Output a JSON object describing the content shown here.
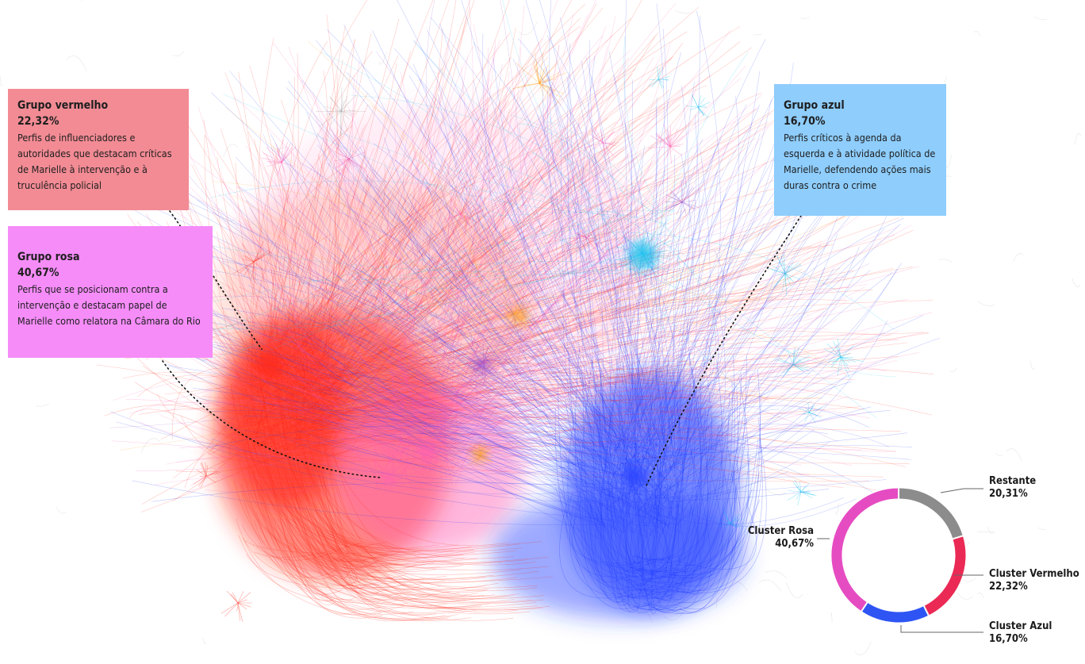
{
  "groups": {
    "red": {
      "title": "Grupo vermelho",
      "percent": "22,32%",
      "description": "Perfis de influenciadores e autoridades que destacam críticas de Marielle à intervenção e à truculência policial",
      "color": "#f28b94"
    },
    "pink": {
      "title": "Grupo rosa",
      "percent": "40,67%",
      "description": "Perfis que se posicionam contra a intervenção e destacam papel de Marielle como relatora na Câmara do Rio",
      "color": "#f58cf8"
    },
    "blue": {
      "title": "Grupo azul",
      "percent": "16,70%",
      "description": "Perfis críticos à agenda da esquerda e à atividade política de Marielle, defendendo ações mais duras contra o crime",
      "color": "#8ecdfc"
    }
  },
  "network_colors": {
    "red": "#ff2a1a",
    "pink": "#ff5fb4",
    "blue": "#1f3dff",
    "cyan": "#17c4f0",
    "orange": "#ffa21a",
    "purple": "#9a4fd0",
    "gray": "#a8a8a8"
  },
  "donut": {
    "segments": [
      {
        "label": "Restante",
        "value": 20.31,
        "value_label": "20,31%",
        "color": "#8c8c8c"
      },
      {
        "label": "Cluster Vermelho",
        "value": 22.32,
        "value_label": "22,32%",
        "color": "#ea2a55"
      },
      {
        "label": "Cluster Azul",
        "value": 16.7,
        "value_label": "16,70%",
        "color": "#2e55f4"
      },
      {
        "label": "Cluster Rosa",
        "value": 40.67,
        "value_label": "40,67%",
        "color": "#e64cc2"
      }
    ]
  }
}
